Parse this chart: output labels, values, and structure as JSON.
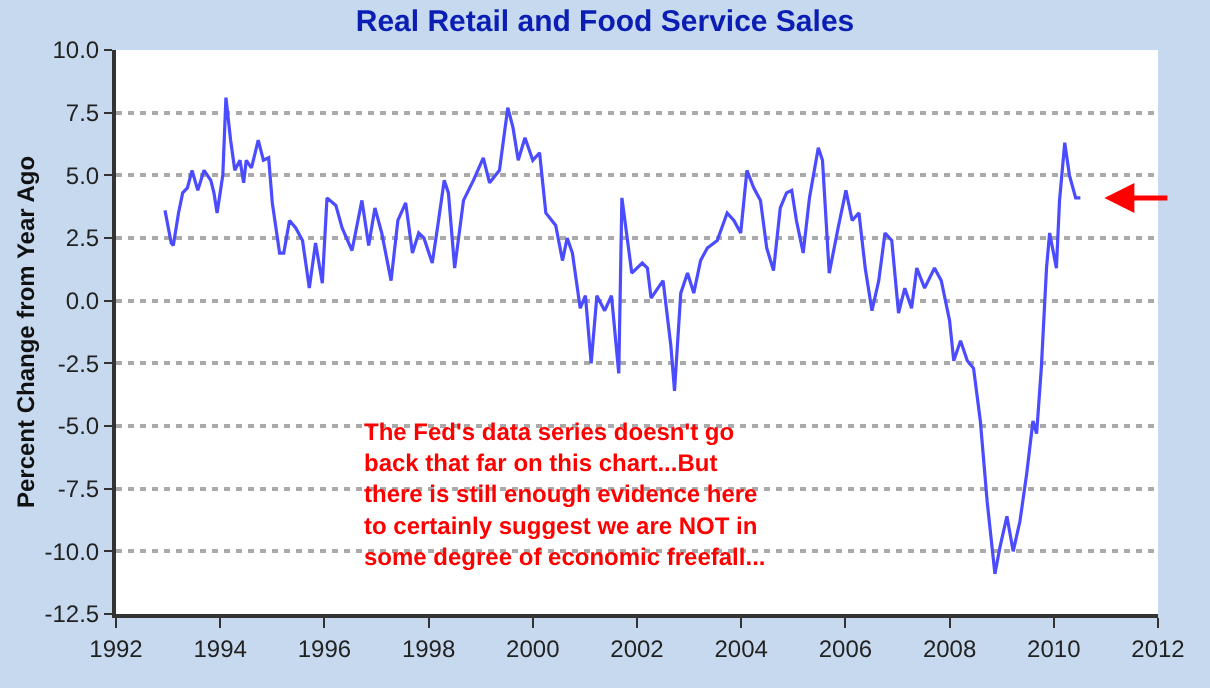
{
  "chart_data": {
    "type": "line",
    "title": "Real Retail and Food Service Sales",
    "ylabel": "Percent Change from Year Ago",
    "annotations": [
      "The Fed's data series doesn't go\nback that far on this chart...But\nthere is still enough evidence here\nto certainly suggest we are NOT in\nsome degree of economic freefall..."
    ],
    "xlim": [
      1992,
      2012
    ],
    "xticks": [
      1992,
      1994,
      1996,
      1998,
      2000,
      2002,
      2004,
      2006,
      2008,
      2010,
      2012
    ],
    "ylim": [
      -12.5,
      10
    ],
    "yticks": [
      {
        "value": -12.5,
        "label": "-12.5"
      },
      {
        "value": -10,
        "label": "-10.0"
      },
      {
        "value": -7.5,
        "label": "-7.5"
      },
      {
        "value": -5,
        "label": "-5.0"
      },
      {
        "value": -2.5,
        "label": "-2.5"
      },
      {
        "value": 0,
        "label": "0.0"
      },
      {
        "value": 2.5,
        "label": "2.5"
      },
      {
        "value": 5,
        "label": "5.0"
      },
      {
        "value": 7.5,
        "label": "7.5"
      },
      {
        "value": 10,
        "label": "10.0"
      }
    ],
    "grid": "y",
    "marker": "none",
    "line_style": "solid",
    "series": [
      {
        "color": "#4b4bff",
        "x": [
          1992.94,
          1993.06,
          1993.1,
          1993.2,
          1993.28,
          1993.37,
          1993.46,
          1993.57,
          1993.69,
          1993.82,
          1993.88,
          1993.94,
          1994.05,
          1994.11,
          1994.2,
          1994.28,
          1994.38,
          1994.45,
          1994.5,
          1994.6,
          1994.73,
          1994.83,
          1994.93,
          1995.0,
          1995.14,
          1995.22,
          1995.33,
          1995.45,
          1995.58,
          1995.71,
          1995.83,
          1995.96,
          1996.05,
          1996.22,
          1996.34,
          1996.53,
          1996.72,
          1996.85,
          1996.97,
          1997.1,
          1997.28,
          1997.41,
          1997.56,
          1997.69,
          1997.81,
          1997.91,
          1998.07,
          1998.17,
          1998.3,
          1998.38,
          1998.5,
          1998.67,
          1998.86,
          1999.05,
          1999.17,
          1999.36,
          1999.52,
          1999.62,
          1999.72,
          1999.85,
          2000.0,
          2000.13,
          2000.25,
          2000.44,
          2000.57,
          2000.66,
          2000.76,
          2000.91,
          2001.01,
          2001.12,
          2001.23,
          2001.38,
          2001.51,
          2001.65,
          2001.71,
          2001.9,
          2002.1,
          2002.2,
          2002.27,
          2002.5,
          2002.65,
          2002.72,
          2002.84,
          2002.97,
          2003.09,
          2003.22,
          2003.35,
          2003.54,
          2003.73,
          2003.86,
          2003.99,
          2004.11,
          2004.24,
          2004.37,
          2004.49,
          2004.62,
          2004.75,
          2004.87,
          2004.97,
          2005.06,
          2005.19,
          2005.31,
          2005.48,
          2005.56,
          2005.69,
          2005.86,
          2006.01,
          2006.13,
          2006.26,
          2006.38,
          2006.51,
          2006.64,
          2006.76,
          2006.89,
          2007.02,
          2007.14,
          2007.27,
          2007.37,
          2007.52,
          2007.71,
          2007.84,
          2008.0,
          2008.08,
          2008.21,
          2008.34,
          2008.46,
          2008.59,
          2008.72,
          2008.87,
          2008.97,
          2009.1,
          2009.22,
          2009.35,
          2009.48,
          2009.6,
          2009.67,
          2009.76,
          2009.86,
          2009.92,
          2010.05,
          2010.11,
          2010.21,
          2010.3,
          2010.42,
          2010.51
        ],
        "values": [
          3.6,
          2.3,
          2.2,
          3.5,
          4.3,
          4.5,
          5.2,
          4.4,
          5.2,
          4.8,
          4.3,
          3.5,
          5.0,
          8.1,
          6.4,
          5.2,
          5.6,
          4.7,
          5.6,
          5.3,
          6.4,
          5.6,
          5.7,
          3.9,
          1.9,
          1.9,
          3.2,
          2.9,
          2.4,
          0.5,
          2.3,
          0.7,
          4.1,
          3.8,
          2.9,
          2.0,
          4.0,
          2.2,
          3.7,
          2.7,
          0.8,
          3.2,
          3.9,
          1.9,
          2.7,
          2.5,
          1.5,
          2.9,
          4.8,
          4.3,
          1.3,
          4.0,
          4.8,
          5.7,
          4.7,
          5.2,
          7.7,
          6.9,
          5.6,
          6.5,
          5.6,
          5.9,
          3.5,
          3.0,
          1.6,
          2.5,
          1.9,
          -0.3,
          0.2,
          -2.5,
          0.2,
          -0.4,
          0.2,
          -2.9,
          4.1,
          1.1,
          1.5,
          1.3,
          0.1,
          0.8,
          -1.8,
          -3.6,
          0.3,
          1.1,
          0.3,
          1.6,
          2.1,
          2.4,
          3.5,
          3.2,
          2.7,
          5.2,
          4.5,
          4.0,
          2.1,
          1.2,
          3.7,
          4.3,
          4.4,
          3.2,
          1.9,
          4.1,
          6.1,
          5.6,
          1.1,
          2.9,
          4.4,
          3.2,
          3.5,
          1.3,
          -0.4,
          0.8,
          2.7,
          2.4,
          -0.5,
          0.5,
          -0.3,
          1.3,
          0.5,
          1.3,
          0.8,
          -0.8,
          -2.4,
          -1.6,
          -2.4,
          -2.7,
          -4.8,
          -8.0,
          -10.9,
          -9.8,
          -8.6,
          -10.0,
          -8.8,
          -6.9,
          -4.8,
          -5.3,
          -2.7,
          1.3,
          2.7,
          1.3,
          4.0,
          6.3,
          5.0,
          4.1,
          4.1
        ]
      }
    ]
  }
}
